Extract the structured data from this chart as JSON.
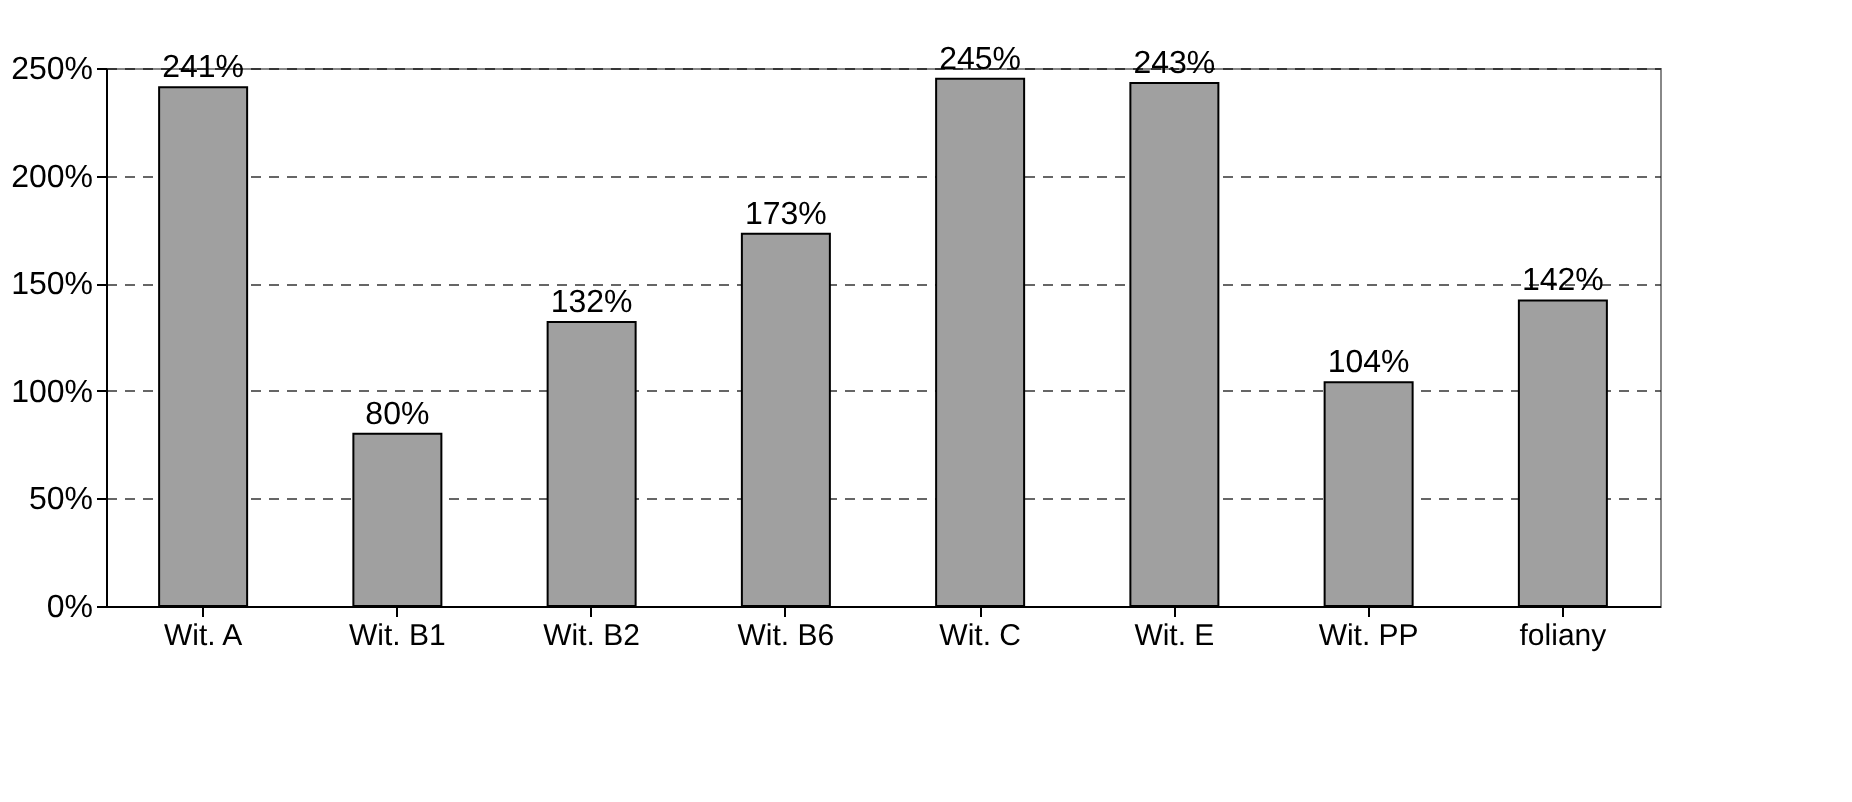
{
  "chart_data": {
    "type": "bar",
    "categories": [
      "Wit. A",
      "Wit. B1",
      "Wit. B2",
      "Wit. B6",
      "Wit. C",
      "Wit. E",
      "Wit. PP",
      "foliany"
    ],
    "values": [
      241,
      80,
      132,
      173,
      245,
      243,
      104,
      142
    ],
    "value_labels": [
      "241%",
      "80%",
      "132%",
      "173%",
      "245%",
      "243%",
      "104%",
      "142%"
    ],
    "color": "#a0a0a0",
    "ylim": [
      0,
      250
    ],
    "yticks": [
      {
        "value": 0,
        "label": "0%"
      },
      {
        "value": 50,
        "label": "50%"
      },
      {
        "value": 100,
        "label": "100%"
      },
      {
        "value": 150,
        "label": "150%"
      },
      {
        "value": 200,
        "label": "200%"
      },
      {
        "value": 250,
        "label": "250%"
      }
    ],
    "grid": "y"
  }
}
